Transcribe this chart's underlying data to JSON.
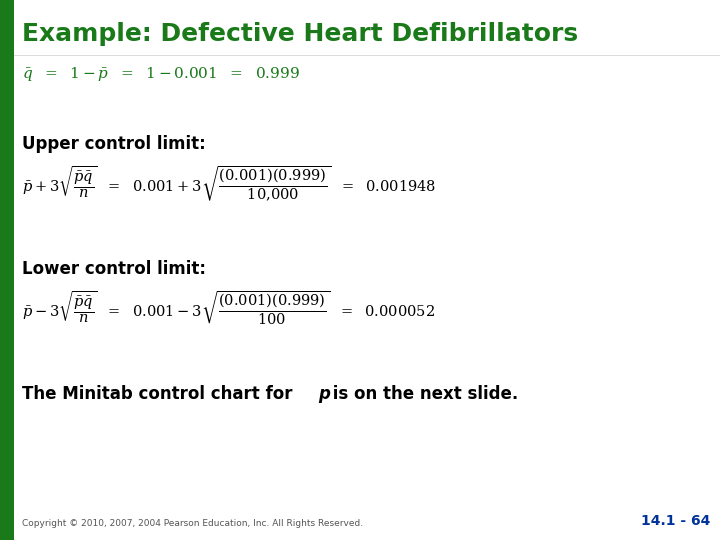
{
  "title": "Example: Defective Heart Defibrillators",
  "title_color": "#1a7a1a",
  "title_fontsize": 18,
  "bg_color": "#ffffff",
  "left_bar_color": "#1a7a1a",
  "text_color": "#000000",
  "green_color": "#1a7a1a",
  "copyright": "Copyright © 2010, 2007, 2004 Pearson Education, Inc. All Rights Reserved.",
  "page_number": "14.1 - 64",
  "ucl_label": "Upper control limit:",
  "lcl_label": "Lower control limit:"
}
